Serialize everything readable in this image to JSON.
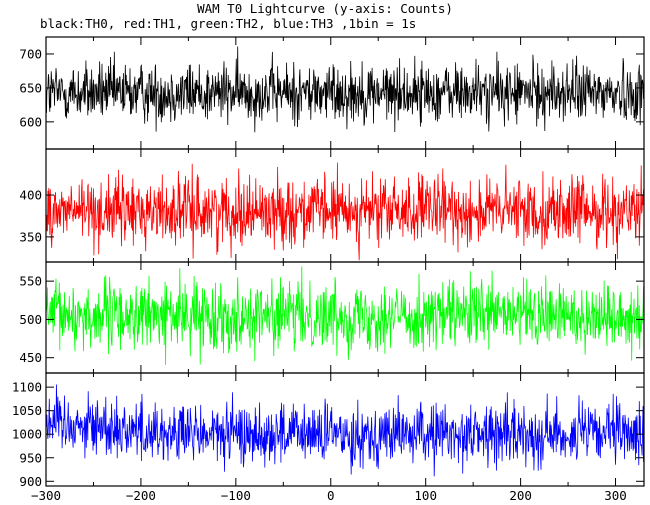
{
  "chart_data": {
    "type": "line",
    "title": "WAM T0 Lightcurve (y-axis: Counts)",
    "subtitle": "black:TH0, red:TH1, green:TH2, blue:TH3 ,1bin = 1s",
    "xlim": [
      -300,
      330
    ],
    "xticks": [
      -300,
      -200,
      -100,
      0,
      100,
      200,
      300
    ],
    "bin_seconds": 1,
    "panels": [
      {
        "name": "TH0",
        "color": "#000000",
        "ylim": [
          560,
          725
        ],
        "yticks": [
          600,
          650,
          700
        ],
        "mean": 643,
        "spread": 22
      },
      {
        "name": "TH1",
        "color": "#ff0000",
        "ylim": [
          320,
          455
        ],
        "yticks": [
          350,
          400
        ],
        "mean": 381,
        "spread": 20
      },
      {
        "name": "TH2",
        "color": "#00ff00",
        "ylim": [
          430,
          575
        ],
        "yticks": [
          450,
          500,
          550
        ],
        "mean": 505,
        "spread": 22
      },
      {
        "name": "TH3",
        "color": "#0000ff",
        "ylim": [
          890,
          1130
        ],
        "yticks": [
          900,
          950,
          1000,
          1050,
          1100
        ],
        "mean": 1000,
        "spread": 32
      }
    ]
  }
}
